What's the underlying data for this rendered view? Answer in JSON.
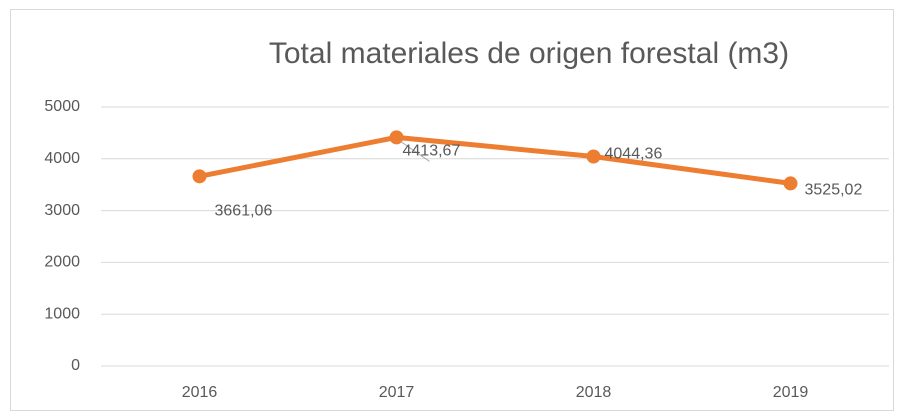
{
  "chart_data": {
    "type": "line",
    "title": "Total materiales de origen forestal (m3)",
    "categories": [
      "2016",
      "2017",
      "2018",
      "2019"
    ],
    "series": [
      {
        "name": "Total materiales de origen forestal (m3)",
        "color": "#ed7d31",
        "values": [
          3661.06,
          4413.67,
          4044.36,
          3525.02
        ],
        "value_labels": [
          "3661,06",
          "4413,67",
          "4044,36",
          "3525,02"
        ]
      }
    ],
    "ylim": [
      0,
      5000
    ],
    "yticks": [
      0,
      1000,
      2000,
      3000,
      4000,
      5000
    ],
    "grid": true
  }
}
